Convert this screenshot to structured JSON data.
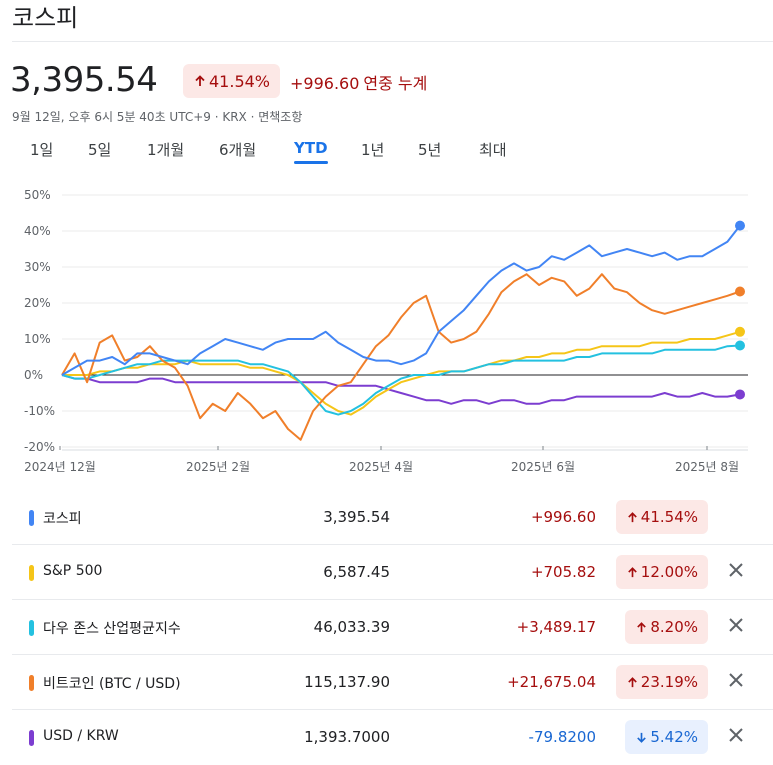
{
  "header": {
    "title": "코스피",
    "price": "3,395.54",
    "pct_change": "41.54%",
    "abs_change": "+996.60",
    "change_suffix": "연중 누계",
    "meta": "9월 12일, 오후 6시 5분 40초 UTC+9 · KRX · 면책조항"
  },
  "tabs": [
    {
      "label": "1일"
    },
    {
      "label": "5일"
    },
    {
      "label": "1개월"
    },
    {
      "label": "6개월"
    },
    {
      "label": "YTD",
      "active": true
    },
    {
      "label": "1년"
    },
    {
      "label": "5년"
    },
    {
      "label": "최대"
    }
  ],
  "colors": {
    "kospi": "#4285f4",
    "sp500": "#f5c518",
    "dow": "#24c1e0",
    "btc": "#f07f2a",
    "usdkrw": "#7c3dd0",
    "up": "#a50e0e",
    "down": "#1967d2"
  },
  "chart_data": {
    "type": "line",
    "yticks": [
      "50%",
      "40%",
      "30%",
      "20%",
      "10%",
      "0%",
      "-10%",
      "-20%"
    ],
    "ylim": [
      -20,
      50
    ],
    "xticks": [
      "2024년 12월",
      "2025년 2월",
      "2025년 4월",
      "2025년 6월",
      "2025년 8월"
    ],
    "series": [
      {
        "name": "코스피",
        "color": "#4285f4",
        "values": [
          0,
          2,
          4,
          4,
          5,
          3,
          6,
          6,
          5,
          4,
          3,
          6,
          8,
          10,
          9,
          8,
          7,
          9,
          10,
          10,
          10,
          12,
          9,
          7,
          5,
          4,
          4,
          3,
          4,
          6,
          12,
          15,
          18,
          22,
          26,
          29,
          31,
          29,
          30,
          33,
          32,
          34,
          36,
          33,
          34,
          35,
          34,
          33,
          34,
          32,
          33,
          33,
          35,
          37,
          41.5
        ]
      },
      {
        "name": "S&P 500",
        "color": "#f5c518",
        "values": [
          0,
          0,
          0,
          1,
          1,
          2,
          2,
          3,
          3,
          3,
          4,
          3,
          3,
          3,
          3,
          2,
          2,
          1,
          0,
          -2,
          -5,
          -8,
          -10,
          -11,
          -9,
          -6,
          -4,
          -2,
          -1,
          0,
          1,
          1,
          1,
          2,
          3,
          4,
          4,
          5,
          5,
          6,
          6,
          7,
          7,
          8,
          8,
          8,
          8,
          9,
          9,
          9,
          10,
          10,
          10,
          11,
          12
        ]
      },
      {
        "name": "다우 존스 산업평균지수",
        "color": "#24c1e0",
        "values": [
          0,
          -1,
          -1,
          0,
          1,
          2,
          3,
          3,
          4,
          4,
          4,
          4,
          4,
          4,
          4,
          3,
          3,
          2,
          1,
          -2,
          -6,
          -10,
          -11,
          -10,
          -8,
          -5,
          -3,
          -1,
          0,
          0,
          0,
          1,
          1,
          2,
          3,
          3,
          4,
          4,
          4,
          4,
          4,
          5,
          5,
          6,
          6,
          6,
          6,
          6,
          7,
          7,
          7,
          7,
          7,
          8,
          8.2
        ]
      },
      {
        "name": "비트코인 (BTC / USD)",
        "color": "#f07f2a",
        "values": [
          0,
          6,
          -2,
          9,
          11,
          4,
          5,
          8,
          4,
          2,
          -3,
          -12,
          -8,
          -10,
          -5,
          -8,
          -12,
          -10,
          -15,
          -18,
          -10,
          -6,
          -3,
          -2,
          3,
          8,
          11,
          16,
          20,
          22,
          12,
          9,
          10,
          12,
          17,
          23,
          26,
          28,
          25,
          27,
          26,
          22,
          24,
          28,
          24,
          23,
          20,
          18,
          17,
          18,
          19,
          20,
          21,
          22,
          23.2
        ]
      },
      {
        "name": "USD / KRW",
        "color": "#7c3dd0",
        "values": [
          0,
          -1,
          -1,
          -2,
          -2,
          -2,
          -2,
          -1,
          -1,
          -2,
          -2,
          -2,
          -2,
          -2,
          -2,
          -2,
          -2,
          -2,
          -2,
          -2,
          -2,
          -2,
          -3,
          -3,
          -3,
          -3,
          -4,
          -5,
          -6,
          -7,
          -7,
          -8,
          -7,
          -7,
          -8,
          -7,
          -7,
          -8,
          -8,
          -7,
          -7,
          -6,
          -6,
          -6,
          -6,
          -6,
          -6,
          -6,
          -5,
          -6,
          -6,
          -5,
          -6,
          -6,
          -5.4
        ]
      }
    ]
  },
  "rows": [
    {
      "name": "코스피",
      "value": "3,395.54",
      "change": "+996.60",
      "pct": "41.54%",
      "dir": "up",
      "removable": false
    },
    {
      "name": "S&P 500",
      "value": "6,587.45",
      "change": "+705.82",
      "pct": "12.00%",
      "dir": "up",
      "removable": true
    },
    {
      "name": "다우 존스 산업평균지수",
      "value": "46,033.39",
      "change": "+3,489.17",
      "pct": "8.20%",
      "dir": "up",
      "removable": true
    },
    {
      "name": "비트코인 (BTC / USD)",
      "value": "115,137.90",
      "change": "+21,675.04",
      "pct": "23.19%",
      "dir": "up",
      "removable": true
    },
    {
      "name": "USD / KRW",
      "value": "1,393.7000",
      "change": "-79.8200",
      "pct": "5.42%",
      "dir": "down",
      "removable": true
    }
  ]
}
